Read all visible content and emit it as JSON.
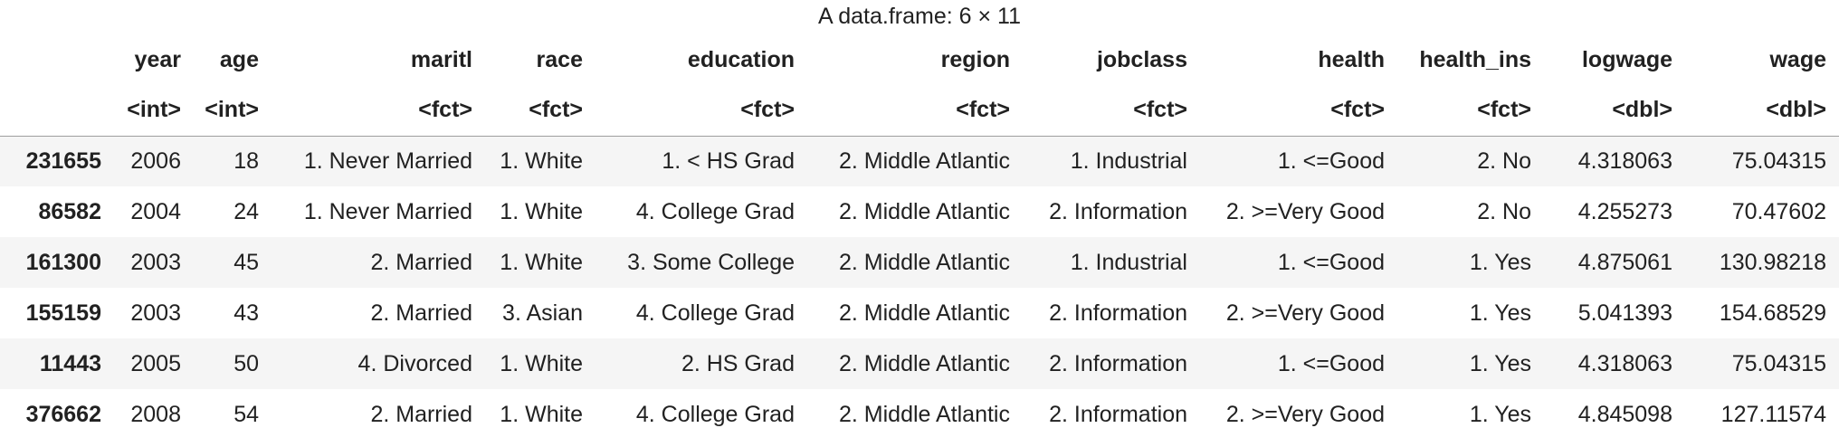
{
  "caption": "A data.frame: 6 × 11",
  "columns": [
    "year",
    "age",
    "maritl",
    "race",
    "education",
    "region",
    "jobclass",
    "health",
    "health_ins",
    "logwage",
    "wage"
  ],
  "types": [
    "<int>",
    "<int>",
    "<fct>",
    "<fct>",
    "<fct>",
    "<fct>",
    "<fct>",
    "<fct>",
    "<fct>",
    "<dbl>",
    "<dbl>"
  ],
  "rows": [
    {
      "id": "231655",
      "cells": [
        "2006",
        "18",
        "1. Never Married",
        "1. White",
        "1. < HS Grad",
        "2. Middle Atlantic",
        "1. Industrial",
        "1. <=Good",
        "2. No",
        "4.318063",
        "75.04315"
      ]
    },
    {
      "id": "86582",
      "cells": [
        "2004",
        "24",
        "1. Never Married",
        "1. White",
        "4. College Grad",
        "2. Middle Atlantic",
        "2. Information",
        "2. >=Very Good",
        "2. No",
        "4.255273",
        "70.47602"
      ]
    },
    {
      "id": "161300",
      "cells": [
        "2003",
        "45",
        "2. Married",
        "1. White",
        "3. Some College",
        "2. Middle Atlantic",
        "1. Industrial",
        "1. <=Good",
        "1. Yes",
        "4.875061",
        "130.98218"
      ]
    },
    {
      "id": "155159",
      "cells": [
        "2003",
        "43",
        "2. Married",
        "3. Asian",
        "4. College Grad",
        "2. Middle Atlantic",
        "2. Information",
        "2. >=Very Good",
        "1. Yes",
        "5.041393",
        "154.68529"
      ]
    },
    {
      "id": "11443",
      "cells": [
        "2005",
        "50",
        "4. Divorced",
        "1. White",
        "2. HS Grad",
        "2. Middle Atlantic",
        "2. Information",
        "1. <=Good",
        "1. Yes",
        "4.318063",
        "75.04315"
      ]
    },
    {
      "id": "376662",
      "cells": [
        "2008",
        "54",
        "2. Married",
        "1. White",
        "4. College Grad",
        "2. Middle Atlantic",
        "2. Information",
        "2. >=Very Good",
        "1. Yes",
        "4.845098",
        "127.11574"
      ]
    }
  ]
}
